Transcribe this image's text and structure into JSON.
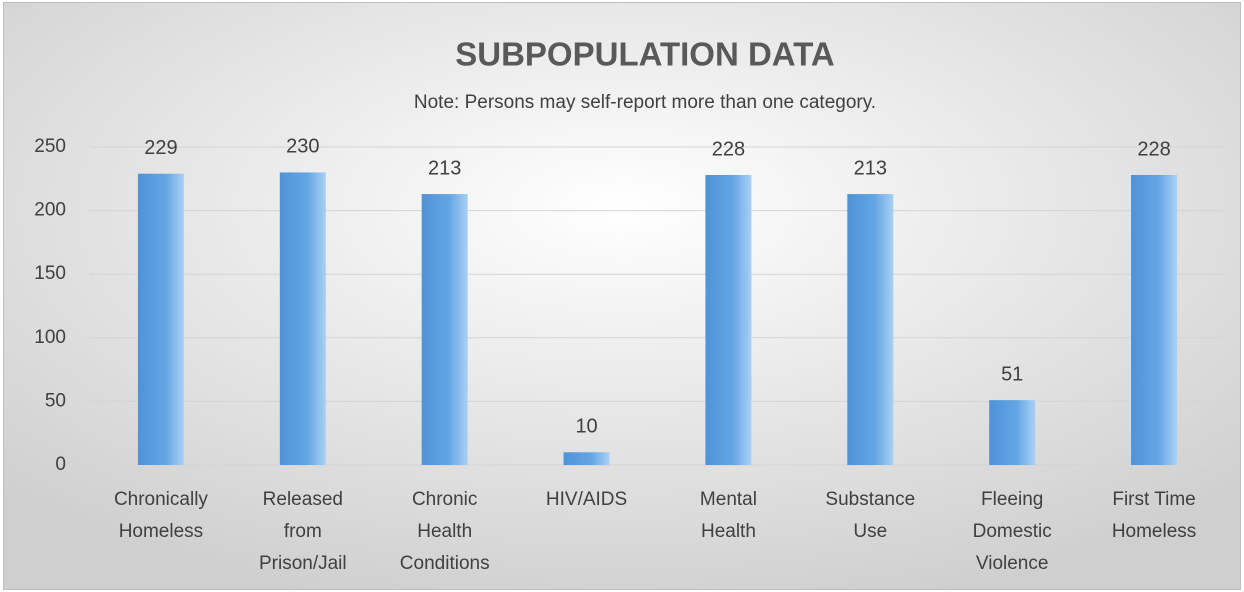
{
  "chart_data": {
    "type": "bar",
    "title": "SUBPOPULATION DATA",
    "subtitle": "Note: Persons may self-report more than one category.",
    "categories": [
      [
        "Chronically",
        "Homeless"
      ],
      [
        "Released",
        "from",
        "Prison/Jail"
      ],
      [
        "Chronic",
        "Health",
        "Conditions"
      ],
      [
        "HIV/AIDS"
      ],
      [
        "Mental",
        "Health"
      ],
      [
        "Substance",
        "Use"
      ],
      [
        "Fleeing",
        "Domestic",
        "Violence"
      ],
      [
        "First Time",
        "Homeless"
      ]
    ],
    "values": [
      229,
      230,
      213,
      10,
      228,
      213,
      51,
      228
    ],
    "color": "#5b9bd5",
    "ylim": [
      0,
      250
    ],
    "yticks": [
      0,
      50,
      100,
      150,
      200,
      250
    ],
    "grid": true
  }
}
